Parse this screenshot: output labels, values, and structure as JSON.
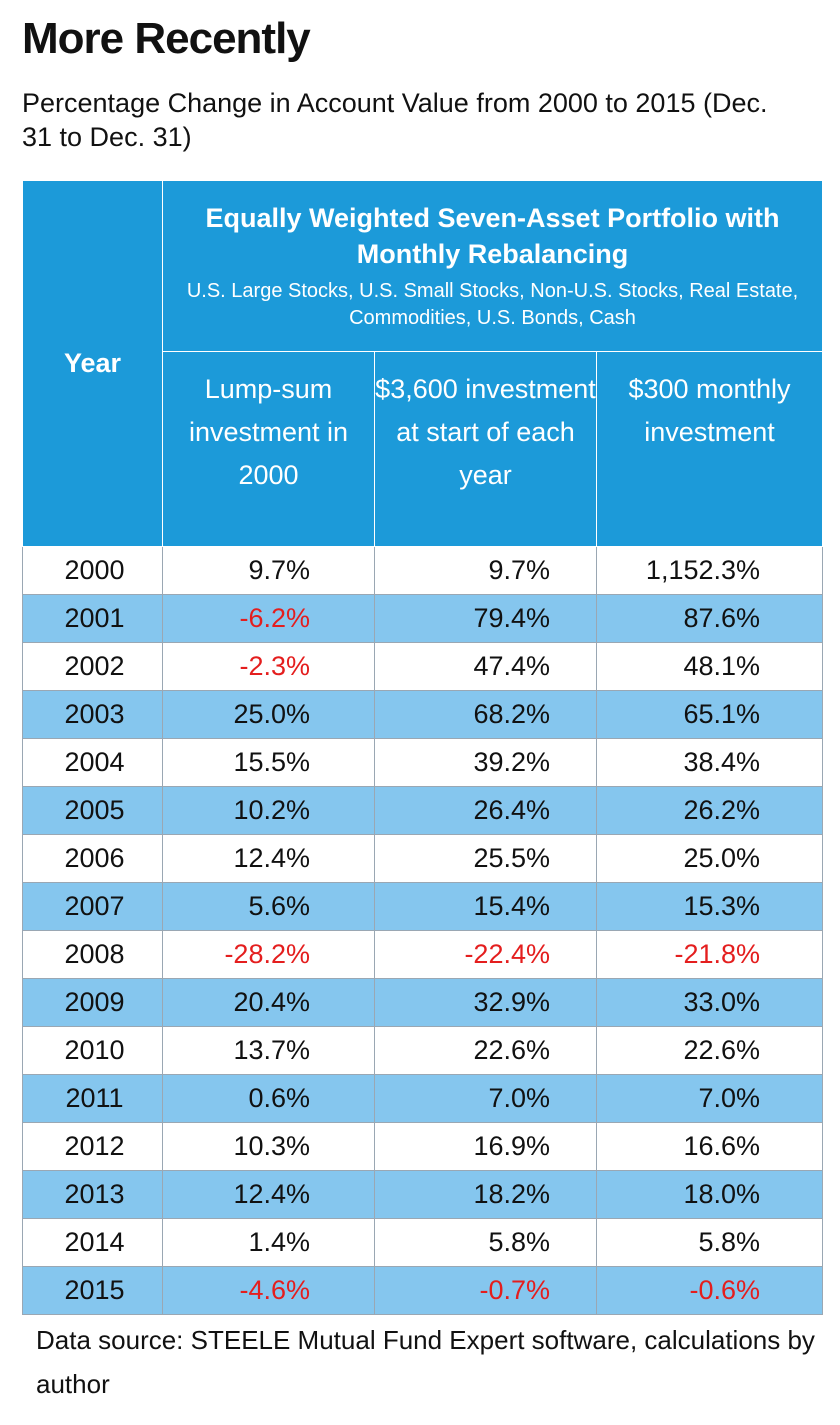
{
  "title": "More Recently",
  "subtitle": "Percentage Change in Account Value from 2000 to 2015 (Dec. 31 to Dec. 31)",
  "table": {
    "year_header": "Year",
    "group_title": "Equally Weighted Seven-Asset Portfolio with Monthly Rebalancing",
    "group_assets": "U.S. Large Stocks, U.S. Small Stocks, Non-U.S. Stocks, Real Estate, Commodities, U.S. Bonds, Cash",
    "columns": [
      "Lump-sum investment in 2000",
      "$3,600 investment at start of each year",
      "$300 monthly investment"
    ],
    "rows": [
      {
        "year": "2000",
        "values": [
          "9.7%",
          "9.7%",
          "1,152.3%"
        ]
      },
      {
        "year": "2001",
        "values": [
          "-6.2%",
          "79.4%",
          "87.6%"
        ]
      },
      {
        "year": "2002",
        "values": [
          "-2.3%",
          "47.4%",
          "48.1%"
        ]
      },
      {
        "year": "2003",
        "values": [
          "25.0%",
          "68.2%",
          "65.1%"
        ]
      },
      {
        "year": "2004",
        "values": [
          "15.5%",
          "39.2%",
          "38.4%"
        ]
      },
      {
        "year": "2005",
        "values": [
          "10.2%",
          "26.4%",
          "26.2%"
        ]
      },
      {
        "year": "2006",
        "values": [
          "12.4%",
          "25.5%",
          "25.0%"
        ]
      },
      {
        "year": "2007",
        "values": [
          "5.6%",
          "15.4%",
          "15.3%"
        ]
      },
      {
        "year": "2008",
        "values": [
          "-28.2%",
          "-22.4%",
          "-21.8%"
        ]
      },
      {
        "year": "2009",
        "values": [
          "20.4%",
          "32.9%",
          "33.0%"
        ]
      },
      {
        "year": "2010",
        "values": [
          "13.7%",
          "22.6%",
          "22.6%"
        ]
      },
      {
        "year": "2011",
        "values": [
          "0.6%",
          "7.0%",
          "7.0%"
        ]
      },
      {
        "year": "2012",
        "values": [
          "10.3%",
          "16.9%",
          "16.6%"
        ]
      },
      {
        "year": "2013",
        "values": [
          "12.4%",
          "18.2%",
          "18.0%"
        ]
      },
      {
        "year": "2014",
        "values": [
          "1.4%",
          "5.8%",
          "5.8%"
        ]
      },
      {
        "year": "2015",
        "values": [
          "-4.6%",
          "-0.7%",
          "-0.6%"
        ]
      }
    ]
  },
  "source": "Data source:  STEELE Mutual Fund Expert software, calculations by author",
  "colors": {
    "header_blue": "#1c9ad9",
    "row_stripe": "#85c6ee",
    "negative_red": "#e41e1e"
  }
}
